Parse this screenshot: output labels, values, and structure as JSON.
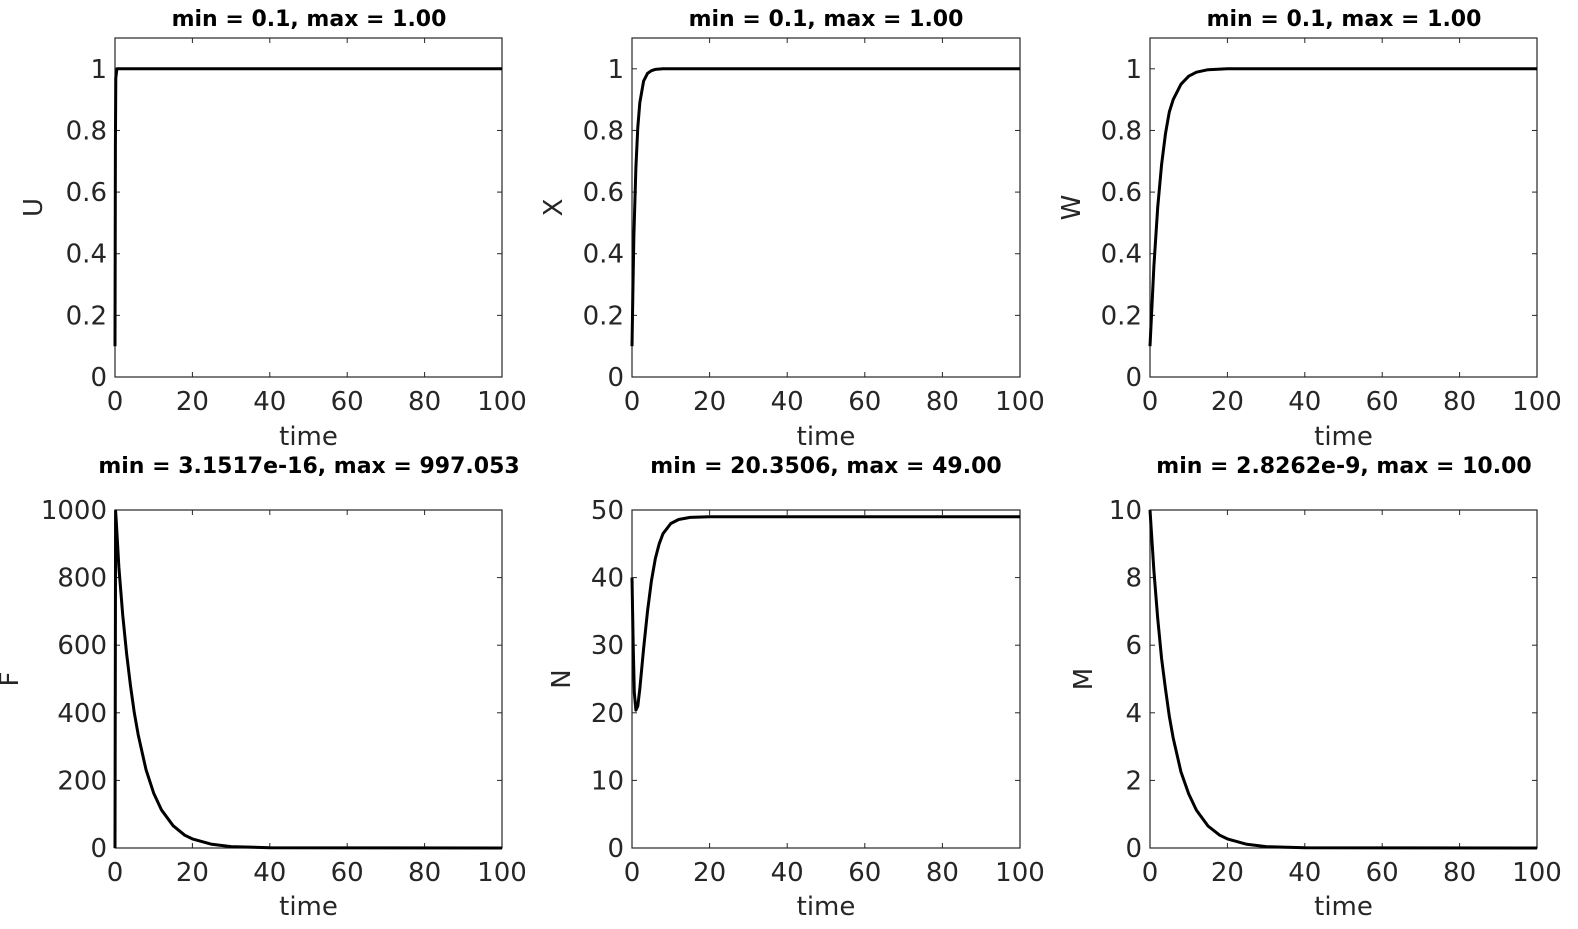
{
  "chart_data": [
    {
      "type": "line",
      "title": "min = 0.1, max = 1.00",
      "xlabel": "time",
      "ylabel": "U",
      "xlim": [
        0,
        100
      ],
      "ylim": [
        0,
        1.1
      ],
      "xticks": [
        0,
        20,
        40,
        60,
        80,
        100
      ],
      "xtick_labels": [
        "0",
        "20",
        "40",
        "60",
        "80",
        "100"
      ],
      "yticks": [
        0,
        0.2,
        0.4,
        0.6,
        0.8,
        1
      ],
      "ytick_labels": [
        "0",
        "0.2",
        "0.4",
        "0.6",
        "0.8",
        "1"
      ],
      "grid": false,
      "series": [
        {
          "x": [
            0,
            0.1,
            0.2,
            0.5,
            1,
            5,
            20,
            50,
            100
          ],
          "y": [
            0.1,
            0.75,
            0.97,
            1.0,
            1.0,
            1.0,
            1.0,
            1.0,
            1.0
          ]
        }
      ]
    },
    {
      "type": "line",
      "title": "min = 0.1, max = 1.00",
      "xlabel": "time",
      "ylabel": "X",
      "xlim": [
        0,
        100
      ],
      "ylim": [
        0,
        1.1
      ],
      "xticks": [
        0,
        20,
        40,
        60,
        80,
        100
      ],
      "xtick_labels": [
        "0",
        "20",
        "40",
        "60",
        "80",
        "100"
      ],
      "yticks": [
        0,
        0.2,
        0.4,
        0.6,
        0.8,
        1
      ],
      "ytick_labels": [
        "0",
        "0.2",
        "0.4",
        "0.6",
        "0.8",
        "1"
      ],
      "grid": false,
      "series": [
        {
          "x": [
            0,
            0.25,
            0.5,
            1,
            1.5,
            2,
            3,
            4,
            5,
            6,
            8,
            10,
            100
          ],
          "y": [
            0.1,
            0.3,
            0.46,
            0.68,
            0.81,
            0.89,
            0.96,
            0.985,
            0.994,
            0.998,
            1.0,
            1.0,
            1.0
          ]
        }
      ]
    },
    {
      "type": "line",
      "title": "min = 0.1, max = 1.00",
      "xlabel": "time",
      "ylabel": "W",
      "xlim": [
        0,
        100
      ],
      "ylim": [
        0,
        1.1
      ],
      "xticks": [
        0,
        20,
        40,
        60,
        80,
        100
      ],
      "xtick_labels": [
        "0",
        "20",
        "40",
        "60",
        "80",
        "100"
      ],
      "yticks": [
        0,
        0.2,
        0.4,
        0.6,
        0.8,
        1
      ],
      "ytick_labels": [
        "0",
        "0.2",
        "0.4",
        "0.6",
        "0.8",
        "1"
      ],
      "grid": false,
      "series": [
        {
          "x": [
            0,
            1,
            2,
            3,
            4,
            5,
            6,
            8,
            10,
            12,
            15,
            20,
            30,
            100
          ],
          "y": [
            0.1,
            0.36,
            0.55,
            0.69,
            0.79,
            0.86,
            0.9,
            0.95,
            0.976,
            0.989,
            0.997,
            1.0,
            1.0,
            1.0
          ]
        }
      ]
    },
    {
      "type": "line",
      "title": "min = 3.1517e-16, max = 997.053",
      "xlabel": "time",
      "ylabel": "F",
      "xlim": [
        0,
        100
      ],
      "ylim": [
        0,
        1000
      ],
      "xticks": [
        0,
        20,
        40,
        60,
        80,
        100
      ],
      "xtick_labels": [
        "0",
        "20",
        "40",
        "60",
        "80",
        "100"
      ],
      "yticks": [
        0,
        200,
        400,
        600,
        800,
        1000
      ],
      "ytick_labels": [
        "0",
        "200",
        "400",
        "600",
        "800",
        "1000"
      ],
      "grid": false,
      "series": [
        {
          "x": [
            0,
            0.15,
            0.3,
            1,
            2,
            3,
            4,
            5,
            6,
            8,
            10,
            12,
            15,
            18,
            20,
            25,
            30,
            40,
            100
          ],
          "y": [
            0,
            997,
            970,
            830,
            690,
            575,
            480,
            400,
            335,
            232,
            162,
            113,
            66,
            38,
            27,
            11,
            4,
            1,
            0
          ]
        }
      ]
    },
    {
      "type": "line",
      "title": "min = 20.3506, max = 49.00",
      "xlabel": "time",
      "ylabel": "N",
      "xlim": [
        0,
        100
      ],
      "ylim": [
        0,
        50
      ],
      "xticks": [
        0,
        20,
        40,
        60,
        80,
        100
      ],
      "xtick_labels": [
        "0",
        "20",
        "40",
        "60",
        "80",
        "100"
      ],
      "yticks": [
        0,
        10,
        20,
        30,
        40,
        50
      ],
      "ytick_labels": [
        "0",
        "10",
        "20",
        "30",
        "40",
        "50"
      ],
      "grid": false,
      "series": [
        {
          "x": [
            0,
            0.3,
            0.6,
            1,
            1.5,
            2,
            3,
            4,
            5,
            6,
            7,
            8,
            10,
            12,
            15,
            20,
            30,
            100
          ],
          "y": [
            40,
            30,
            23,
            20.4,
            21,
            23.5,
            29.5,
            35,
            39.5,
            42.8,
            45,
            46.5,
            48,
            48.6,
            48.9,
            49,
            49,
            49
          ]
        }
      ]
    },
    {
      "type": "line",
      "title": "min = 2.8262e-9, max = 10.00",
      "xlabel": "time",
      "ylabel": "M",
      "xlim": [
        0,
        100
      ],
      "ylim": [
        0,
        10
      ],
      "xticks": [
        0,
        20,
        40,
        60,
        80,
        100
      ],
      "xtick_labels": [
        "0",
        "20",
        "40",
        "60",
        "80",
        "100"
      ],
      "yticks": [
        0,
        2,
        4,
        6,
        8,
        10
      ],
      "ytick_labels": [
        "0",
        "2",
        "4",
        "6",
        "8",
        "10"
      ],
      "grid": false,
      "series": [
        {
          "x": [
            0,
            1,
            2,
            3,
            4,
            5,
            6,
            8,
            10,
            12,
            15,
            18,
            20,
            25,
            30,
            40,
            100
          ],
          "y": [
            10,
            8.2,
            6.8,
            5.6,
            4.7,
            3.9,
            3.25,
            2.25,
            1.6,
            1.12,
            0.65,
            0.38,
            0.27,
            0.11,
            0.04,
            0.01,
            0
          ]
        }
      ]
    }
  ]
}
